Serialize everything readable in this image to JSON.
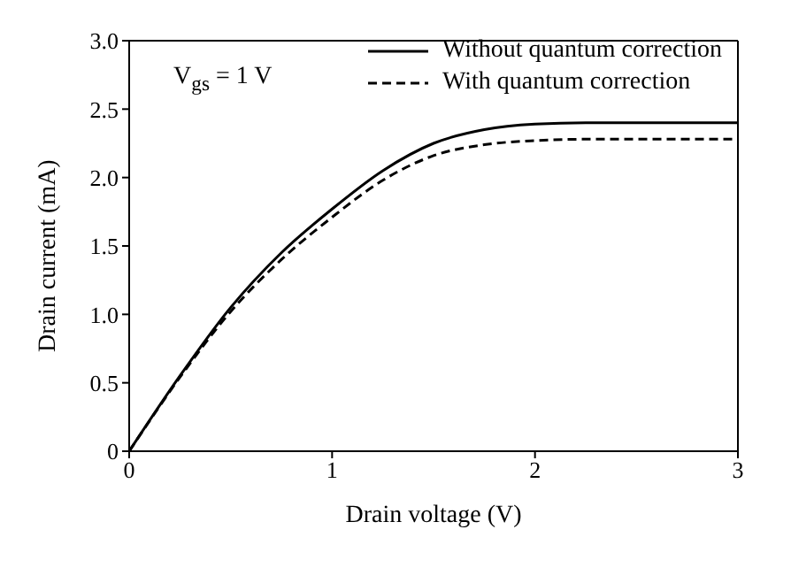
{
  "chart_data": {
    "type": "line",
    "xlabel": "Drain voltage (V)",
    "ylabel": "Drain current (mA)",
    "annotations": [
      "V$_{gs}$ = 1 V"
    ],
    "x": [
      0,
      0.25,
      0.5,
      0.75,
      1,
      1.25,
      1.5,
      1.75,
      2,
      2.25,
      2.5,
      3
    ],
    "series": [
      {
        "name": "Without quantum correction",
        "color": "#000000",
        "line_style": "solid",
        "values": [
          0,
          0.55,
          1.05,
          1.45,
          1.77,
          2.05,
          2.25,
          2.35,
          2.39,
          2.4,
          2.4,
          2.4
        ]
      },
      {
        "name": "With quantum correction",
        "color": "#000000",
        "line_style": "dashed",
        "values": [
          0,
          0.54,
          1.02,
          1.4,
          1.71,
          1.98,
          2.16,
          2.24,
          2.27,
          2.28,
          2.28,
          2.28
        ]
      }
    ],
    "xlim": [
      0,
      3
    ],
    "xticks": [
      0,
      1,
      2,
      3
    ],
    "ylim": [
      0,
      3
    ],
    "yticks": [
      0,
      0.5,
      {
        "value": 1,
        "label": "1.0"
      },
      1.5,
      {
        "value": 2,
        "label": "2.0"
      },
      2.5,
      {
        "value": 3,
        "label": "3.0"
      }
    ],
    "grid": false,
    "legend": "top right",
    "marker": "none"
  }
}
